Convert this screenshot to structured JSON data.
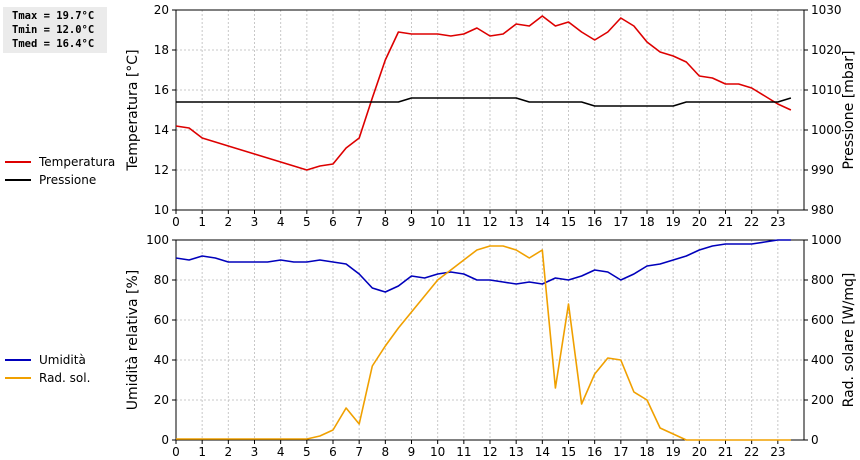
{
  "stats": {
    "tmax": "Tmax = 19.7°C",
    "tmin": "Tmin = 12.0°C",
    "tmed": "Tmed = 16.4°C"
  },
  "legend_top": [
    {
      "label": "Temperatura",
      "color": "#dd0000"
    },
    {
      "label": "Pressione",
      "color": "#000000"
    }
  ],
  "legend_bottom": [
    {
      "label": "Umidità",
      "color": "#0000bb"
    },
    {
      "label": "Rad. sol.",
      "color": "#f0a000"
    }
  ],
  "chart_data": [
    {
      "type": "line",
      "xlim": [
        0,
        24
      ],
      "xticks": [
        0,
        1,
        2,
        3,
        4,
        5,
        6,
        7,
        8,
        9,
        10,
        11,
        12,
        13,
        14,
        15,
        16,
        17,
        18,
        19,
        20,
        21,
        22,
        23
      ],
      "grid": true,
      "left_axis": {
        "label": "Temperatura [°C]",
        "ylim": [
          10,
          20
        ],
        "ticks": [
          10,
          12,
          14,
          16,
          18,
          20
        ]
      },
      "right_axis": {
        "label": "Pressione [mbar]",
        "ylim": [
          980,
          1030
        ],
        "ticks": [
          980,
          990,
          1000,
          1010,
          1020,
          1030
        ]
      },
      "series": [
        {
          "name": "Temperatura",
          "axis": "left",
          "color": "#dd0000",
          "x": [
            0,
            0.5,
            1,
            1.5,
            2,
            2.5,
            3,
            3.5,
            4,
            4.5,
            5,
            5.5,
            6,
            6.5,
            7,
            7.5,
            8,
            8.5,
            9,
            9.5,
            10,
            10.5,
            11,
            11.5,
            12,
            12.5,
            13,
            13.5,
            14,
            14.5,
            15,
            15.5,
            16,
            16.5,
            17,
            17.5,
            18,
            18.5,
            19,
            19.5,
            20,
            20.5,
            21,
            21.5,
            22,
            22.5,
            23,
            23.5
          ],
          "values": [
            14.2,
            14.1,
            13.6,
            13.4,
            13.2,
            13.0,
            12.8,
            12.6,
            12.4,
            12.2,
            12.0,
            12.2,
            12.3,
            13.1,
            13.6,
            15.6,
            17.5,
            18.9,
            18.8,
            18.8,
            18.8,
            18.7,
            18.8,
            19.1,
            18.7,
            18.8,
            19.3,
            19.2,
            19.7,
            19.2,
            19.4,
            18.9,
            18.5,
            18.9,
            19.6,
            19.2,
            18.4,
            17.9,
            17.7,
            17.4,
            16.7,
            16.6,
            16.3,
            16.3,
            16.1,
            15.7,
            15.3,
            15.0
          ]
        },
        {
          "name": "Pressione",
          "axis": "right",
          "color": "#000000",
          "x": [
            0,
            1,
            2,
            3,
            4,
            5,
            6,
            7,
            8,
            8.5,
            9,
            10,
            11,
            12,
            13,
            13.5,
            14,
            15,
            15.5,
            16,
            17,
            18,
            19,
            19.5,
            20,
            21,
            22,
            23,
            23.5
          ],
          "values": [
            1007,
            1007,
            1007,
            1007,
            1007,
            1007,
            1007,
            1007,
            1007,
            1007,
            1008,
            1008,
            1008,
            1008,
            1008,
            1007,
            1007,
            1007,
            1007,
            1006,
            1006,
            1006,
            1006,
            1007,
            1007,
            1007,
            1007,
            1007,
            1008
          ]
        }
      ]
    },
    {
      "type": "line",
      "xlim": [
        0,
        24
      ],
      "xticks": [
        0,
        1,
        2,
        3,
        4,
        5,
        6,
        7,
        8,
        9,
        10,
        11,
        12,
        13,
        14,
        15,
        16,
        17,
        18,
        19,
        20,
        21,
        22,
        23
      ],
      "grid": true,
      "left_axis": {
        "label": "Umidità relativa [%]",
        "ylim": [
          0,
          100
        ],
        "ticks": [
          0,
          20,
          40,
          60,
          80,
          100
        ]
      },
      "right_axis": {
        "label": "Rad. solare [W/mq]",
        "ylim": [
          0,
          1000
        ],
        "ticks": [
          0,
          200,
          400,
          600,
          800,
          1000
        ]
      },
      "series": [
        {
          "name": "Umidità",
          "axis": "left",
          "color": "#0000bb",
          "x": [
            0,
            0.5,
            1,
            1.5,
            2,
            2.5,
            3,
            3.5,
            4,
            4.5,
            5,
            5.5,
            6,
            6.5,
            7,
            7.5,
            8,
            8.5,
            9,
            9.5,
            10,
            10.5,
            11,
            11.5,
            12,
            12.5,
            13,
            13.5,
            14,
            14.5,
            15,
            15.5,
            16,
            16.5,
            17,
            17.5,
            18,
            18.5,
            19,
            19.5,
            20,
            20.5,
            21,
            21.5,
            22,
            22.5,
            23,
            23.5
          ],
          "values": [
            91,
            90,
            92,
            91,
            89,
            89,
            89,
            89,
            90,
            89,
            89,
            90,
            89,
            88,
            83,
            76,
            74,
            77,
            82,
            81,
            83,
            84,
            83,
            80,
            80,
            79,
            78,
            79,
            78,
            81,
            80,
            82,
            85,
            84,
            80,
            83,
            87,
            88,
            90,
            92,
            95,
            97,
            98,
            98,
            98,
            99,
            100,
            100
          ]
        },
        {
          "name": "Rad. sol.",
          "axis": "right",
          "color": "#f0a000",
          "x": [
            0,
            1,
            2,
            3,
            4,
            5,
            5.5,
            6,
            6.5,
            7,
            7.5,
            8,
            8.5,
            9,
            9.5,
            10,
            10.5,
            11,
            11.5,
            12,
            12.5,
            13,
            13.5,
            14,
            14.5,
            15,
            15.5,
            16,
            16.5,
            17,
            17.5,
            18,
            18.5,
            19,
            19.5,
            20,
            21,
            22,
            23,
            23.5
          ],
          "values": [
            5,
            5,
            5,
            5,
            5,
            5,
            20,
            50,
            160,
            80,
            370,
            470,
            560,
            640,
            720,
            800,
            850,
            900,
            950,
            970,
            970,
            950,
            910,
            950,
            260,
            680,
            180,
            330,
            410,
            400,
            240,
            200,
            60,
            30,
            0,
            0,
            0,
            0,
            0,
            0
          ]
        }
      ]
    }
  ]
}
